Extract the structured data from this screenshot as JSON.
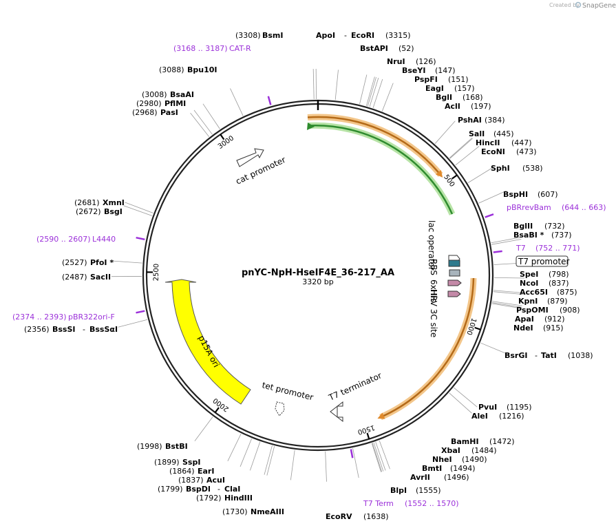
{
  "plasmid": {
    "name": "pnYC-NpH-HseIF4E_36-217_AA",
    "length_label": "3320 bp",
    "length": 3320
  },
  "branding": {
    "created_by": "Created by",
    "product": "SnapGene"
  },
  "colors": {
    "backbone": "#222222",
    "primer": "#9b30d9",
    "orange_feature": "#e08a2c",
    "green_feature": "#2e8b2e",
    "ori": "#ffff00",
    "rbs": "#2f7a8c",
    "his": "#a8b4bc",
    "site": "#c48aa8"
  },
  "ticks": [
    {
      "label": "500",
      "pos": 500
    },
    {
      "label": "1000",
      "pos": 1000
    },
    {
      "label": "1500",
      "pos": 1500
    },
    {
      "label": "2000",
      "pos": 2000
    },
    {
      "label": "2500",
      "pos": 2500
    },
    {
      "label": "3000",
      "pos": 3000
    }
  ],
  "sites": [
    {
      "name": "BsmI",
      "coord": "(3308)",
      "pos": 3308
    },
    {
      "name": "ApoI",
      "name2": "EcoRI",
      "coord": "(3315)",
      "pos": 3315
    },
    {
      "name": "BstAPI",
      "coord": "(52)",
      "pos": 52
    },
    {
      "name": "NruI",
      "coord": "(126)",
      "pos": 126
    },
    {
      "name": "BseYI",
      "coord": "(147)",
      "pos": 147
    },
    {
      "name": "PspFI",
      "coord": "(151)",
      "pos": 151
    },
    {
      "name": "EagI",
      "coord": "(157)",
      "pos": 157
    },
    {
      "name": "BglI",
      "coord": "(168)",
      "pos": 168
    },
    {
      "name": "AclI",
      "coord": "(197)",
      "pos": 197
    },
    {
      "name": "PshAI",
      "coord": "(384)",
      "pos": 384
    },
    {
      "name": "SalI",
      "coord": "(445)",
      "pos": 445
    },
    {
      "name": "HincII",
      "coord": "(447)",
      "pos": 447
    },
    {
      "name": "EcoNI",
      "coord": "(473)",
      "pos": 473
    },
    {
      "name": "SphI",
      "coord": "(538)",
      "pos": 538
    },
    {
      "name": "BspHI",
      "coord": "(607)",
      "pos": 607
    },
    {
      "name": "BglII",
      "coord": "(732)",
      "pos": 732
    },
    {
      "name": "BsaBI *",
      "coord": "(737)",
      "pos": 737
    },
    {
      "name": "SpeI",
      "coord": "(798)",
      "pos": 798
    },
    {
      "name": "NcoI",
      "coord": "(837)",
      "pos": 837
    },
    {
      "name": "Acc65I",
      "coord": "(875)",
      "pos": 875
    },
    {
      "name": "KpnI",
      "coord": "(879)",
      "pos": 879
    },
    {
      "name": "PspOMI",
      "coord": "(908)",
      "pos": 908
    },
    {
      "name": "ApaI",
      "coord": "(912)",
      "pos": 912
    },
    {
      "name": "NdeI",
      "coord": "(915)",
      "pos": 915
    },
    {
      "name": "BsrGI",
      "name2": "TatI",
      "coord": "(1038)",
      "pos": 1038
    },
    {
      "name": "PvuI",
      "coord": "(1195)",
      "pos": 1195
    },
    {
      "name": "AleI",
      "coord": "(1216)",
      "pos": 1216
    },
    {
      "name": "BamHI",
      "coord": "(1472)",
      "pos": 1472
    },
    {
      "name": "XbaI",
      "coord": "(1484)",
      "pos": 1484
    },
    {
      "name": "NheI",
      "coord": "(1490)",
      "pos": 1490
    },
    {
      "name": "BmtI",
      "coord": "(1494)",
      "pos": 1494
    },
    {
      "name": "AvrII",
      "coord": "(1496)",
      "pos": 1496
    },
    {
      "name": "BlpI",
      "coord": "(1555)",
      "pos": 1555
    },
    {
      "name": "EcoRV",
      "coord": "(1638)",
      "pos": 1638
    },
    {
      "name": "NmeAIII",
      "coord": "(1730)",
      "pos": 1730
    },
    {
      "name": "HindIII",
      "coord": "(1792)",
      "pos": 1792
    },
    {
      "name": "BspDI",
      "name2": "ClaI",
      "coord": "(1799)",
      "pos": 1799
    },
    {
      "name": "AcuI",
      "coord": "(1837)",
      "pos": 1837
    },
    {
      "name": "EarI",
      "coord": "(1864)",
      "pos": 1864
    },
    {
      "name": "SspI",
      "coord": "(1899)",
      "pos": 1899
    },
    {
      "name": "BstBI",
      "coord": "(1998)",
      "pos": 1998
    },
    {
      "name": "BssSI",
      "name2": "BssSαI",
      "coord": "(2356)",
      "pos": 2356
    },
    {
      "name": "SacII",
      "coord": "(2487)",
      "pos": 2487
    },
    {
      "name": "PfoI *",
      "coord": "(2527)",
      "pos": 2527
    },
    {
      "name": "BsgI",
      "coord": "(2672)",
      "pos": 2672
    },
    {
      "name": "XmnI",
      "coord": "(2681)",
      "pos": 2681
    },
    {
      "name": "PasI",
      "coord": "(2968)",
      "pos": 2968
    },
    {
      "name": "PflMI",
      "coord": "(2980)",
      "pos": 2980
    },
    {
      "name": "BsaAI",
      "coord": "(3008)",
      "pos": 3008
    },
    {
      "name": "Bpu10I",
      "coord": "(3088)",
      "pos": 3088
    }
  ],
  "primers": [
    {
      "name": "CAT-R",
      "range": "(3168 .. 3187)",
      "pos": 3177
    },
    {
      "name": "pBRrevBam",
      "range": "(644 .. 663)",
      "pos": 653
    },
    {
      "name": "T7",
      "range": "(752 .. 771)",
      "pos": 761
    },
    {
      "name": "T7 Term",
      "range": "(1552 .. 1570)",
      "pos": 1561
    },
    {
      "name": "pBR322ori-F",
      "range": "(2374 .. 2393)",
      "pos": 2383
    },
    {
      "name": "L4440",
      "range": "(2590 .. 2607)",
      "pos": 2598
    }
  ],
  "features": {
    "t7_promoter": "T7 promoter",
    "lac_operator": "lac operator",
    "rbs": "RBS",
    "his": "6xHis",
    "hrv": "HRV 3C site",
    "t7_terminator": "T7 terminator",
    "tet_promoter": "tet promoter",
    "cat_promoter": "cat promoter",
    "p15a_ori": "p15A ori"
  }
}
